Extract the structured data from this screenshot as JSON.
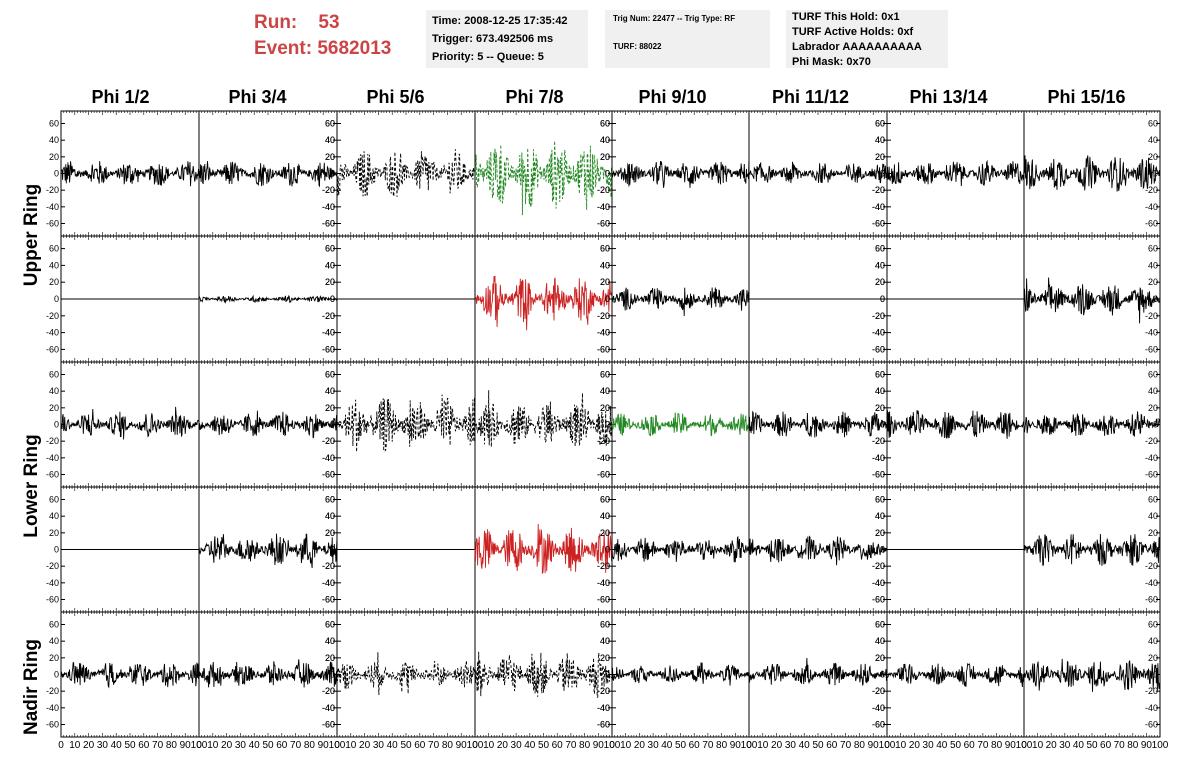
{
  "header": {
    "run_label": "Run:",
    "run_value": "53",
    "event_label": "Event:",
    "event_value": "5682013"
  },
  "info_box_1": {
    "time": "Time: 2008-12-25 17:35:42",
    "trigger": "Trigger: 673.492506 ms",
    "priority": "Priority: 5 -- Queue: 5"
  },
  "info_box_2": {
    "trig": "Trig Num: 22477 -- Trig Type: RF",
    "turf": "TURF: 88022"
  },
  "info_box_3": {
    "hold": "TURF This Hold: 0x1",
    "active": "TURF Active Holds: 0xf",
    "labrador": "Labrador AAAAAAAAAA",
    "phi_mask": "Phi Mask: 0x70"
  },
  "columns": [
    "Phi 1/2",
    "Phi 3/4",
    "Phi 5/6",
    "Phi 7/8",
    "Phi 9/10",
    "Phi 11/12",
    "Phi 13/14",
    "Phi 15/16"
  ],
  "rings": [
    "Upper Ring",
    "Lower Ring",
    "Nadir Ring"
  ],
  "colors": {
    "black": "#000000",
    "red": "#cc2222",
    "green": "#228822",
    "title_red": "#cc4444",
    "box_bg": "#f0f0f0"
  },
  "chart_data": {
    "type": "line",
    "description_rows": [
      "upper-1",
      "upper-2",
      "lower-1",
      "lower-2",
      "nadir"
    ],
    "x_range": [
      0,
      100
    ],
    "x_ticks": [
      "0",
      "10",
      "20",
      "30",
      "40",
      "50",
      "60",
      "70",
      "80",
      "90",
      "100"
    ],
    "y_range": [
      -75,
      75
    ],
    "y_ticks": [
      "60",
      "40",
      "20",
      "0",
      "-20",
      "-40",
      "-60"
    ],
    "panels": [
      [
        "solid-black",
        "solid-black",
        "dashed-black",
        "dashed-green",
        "solid-black",
        "solid-black",
        "solid-black",
        "solid-black"
      ],
      [
        "flat",
        "small-black",
        "flat",
        "solid-red",
        "solid-black",
        "flat",
        "flat",
        "solid-black"
      ],
      [
        "solid-black",
        "solid-black",
        "dashed-black",
        "dashed-black",
        "solid-green",
        "solid-black",
        "solid-black",
        "solid-black"
      ],
      [
        "flat",
        "solid-black",
        "flat",
        "solid-red",
        "solid-black",
        "solid-black",
        "flat",
        "solid-black"
      ],
      [
        "solid-black",
        "solid-black",
        "dashed-black",
        "dashed-black",
        "solid-black",
        "solid-black",
        "solid-black",
        "solid-black"
      ]
    ],
    "amplitudes": [
      [
        16,
        16,
        30,
        45,
        16,
        14,
        16,
        22
      ],
      [
        0,
        4,
        0,
        28,
        14,
        0,
        0,
        20
      ],
      [
        16,
        16,
        34,
        30,
        14,
        16,
        18,
        16
      ],
      [
        0,
        20,
        0,
        30,
        16,
        16,
        0,
        20
      ],
      [
        16,
        16,
        18,
        28,
        12,
        14,
        14,
        20
      ]
    ]
  }
}
